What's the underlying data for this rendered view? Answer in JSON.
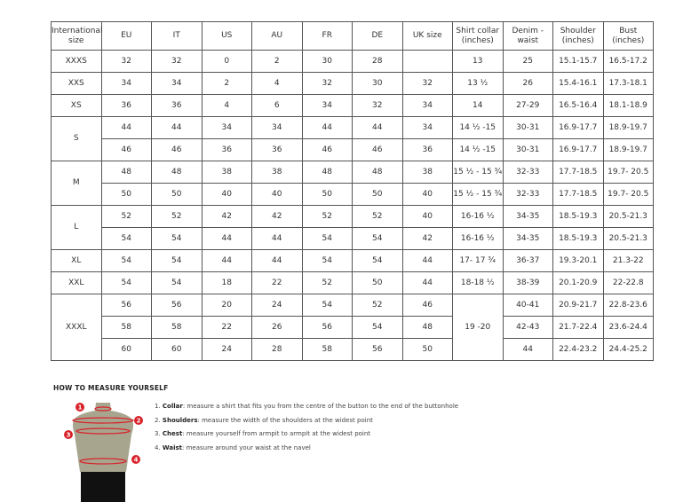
{
  "headers": [
    "International size",
    "EU",
    "IT",
    "US",
    "AU",
    "FR",
    "DE",
    "UK size",
    "Shirt collar (inches)",
    "Denim - waist",
    "Shoulder (inches)",
    "Bust (inches)"
  ],
  "groups": [
    {
      "size": "XXXS",
      "rows": [
        [
          "32",
          "32",
          "0",
          "2",
          "30",
          "28",
          "",
          "13",
          "25",
          "15.1-15.7",
          "16.5-17.2"
        ]
      ]
    },
    {
      "size": "XXS",
      "rows": [
        [
          "34",
          "34",
          "2",
          "4",
          "32",
          "30",
          "32",
          "13 ½",
          "26",
          "15.4-16.1",
          "17.3-18.1"
        ]
      ]
    },
    {
      "size": "XS",
      "rows": [
        [
          "36",
          "36",
          "4",
          "6",
          "34",
          "32",
          "34",
          "14",
          "27-29",
          "16.5-16.4",
          "18.1-18.9"
        ]
      ]
    },
    {
      "size": "S",
      "rows": [
        [
          "44",
          "44",
          "34",
          "34",
          "44",
          "44",
          "34",
          "14 ½ -15",
          "30-31",
          "16.9-17.7",
          "18.9-19.7"
        ],
        [
          "46",
          "46",
          "36",
          "36",
          "46",
          "46",
          "36",
          "14 ½ -15",
          "30-31",
          "16.9-17.7",
          "18.9-19.7"
        ]
      ]
    },
    {
      "size": "M",
      "rows": [
        [
          "48",
          "48",
          "38",
          "38",
          "48",
          "48",
          "38",
          "15 ½ - 15 ¾",
          "32-33",
          "17.7-18.5",
          "19.7- 20.5"
        ],
        [
          "50",
          "50",
          "40",
          "40",
          "50",
          "50",
          "40",
          "15 ½ - 15 ¾",
          "32-33",
          "17.7-18.5",
          "19.7- 20.5"
        ]
      ]
    },
    {
      "size": "L",
      "rows": [
        [
          "52",
          "52",
          "42",
          "42",
          "52",
          "52",
          "40",
          "16-16 ½",
          "34-35",
          "18.5-19.3",
          "20.5-21.3"
        ],
        [
          "54",
          "54",
          "44",
          "44",
          "54",
          "54",
          "42",
          "16-16 ½",
          "34-35",
          "18.5-19.3",
          "20.5-21.3"
        ]
      ]
    },
    {
      "size": "XL",
      "rows": [
        [
          "54",
          "54",
          "44",
          "44",
          "54",
          "54",
          "44",
          "17- 17 ¾",
          "36-37",
          "19.3-20.1",
          "21.3-22"
        ]
      ]
    },
    {
      "size": "XXL",
      "rows": [
        [
          "54",
          "54",
          "18",
          "22",
          "52",
          "50",
          "44",
          "18-18 ½",
          "38-39",
          "20.1-20.9",
          "22-22.8"
        ]
      ]
    },
    {
      "size": "XXXL",
      "rows": [
        [
          "56",
          "56",
          "20",
          "24",
          "54",
          "52",
          "46",
          "19 -20",
          "40-41",
          "20.9-21.7",
          "22.8-23.6"
        ],
        [
          "58",
          "58",
          "22",
          "26",
          "56",
          "54",
          "48",
          null,
          "42-43",
          "21.7-22.4",
          "23.6-24.4"
        ],
        [
          "60",
          "60",
          "24",
          "28",
          "58",
          "56",
          "50",
          null,
          "44",
          "22.4-23.2",
          "24.4-25.2"
        ]
      ]
    }
  ],
  "measure": {
    "title": "HOW TO MEASURE YOURSELF",
    "steps": [
      {
        "num": "1.",
        "label": "Collar",
        "text": ": measure a shirt that fits you from the centre of the button to the end of the buttonhole"
      },
      {
        "num": "2.",
        "label": "Shoulders",
        "text": ": measure the width of the shoulders at the widest point"
      },
      {
        "num": "3.",
        "label": "Chest",
        "text": ": measure yourself from armpit to armpit at the widest point"
      },
      {
        "num": "4.",
        "label": "Waist",
        "text": ": measure around your waist at the navel"
      }
    ],
    "figure_markers": [
      "1",
      "2",
      "3",
      "4"
    ],
    "colors": {
      "skin": "#a8a58f",
      "marker": "#d8222a",
      "pants": "#111111"
    }
  }
}
